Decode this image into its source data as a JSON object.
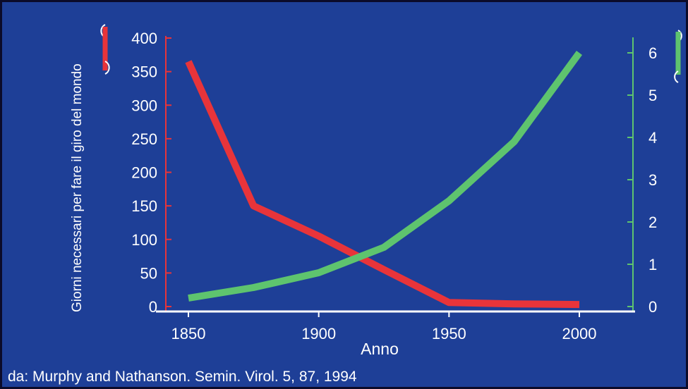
{
  "chart_data": {
    "type": "line",
    "title": "",
    "xlabel": "Anno",
    "ylabel_left": "Giorni necessari per fare il giro del mondo",
    "ylabel_right": "",
    "x_ticks": [
      1850,
      1900,
      1950,
      2000
    ],
    "xlim": [
      1840,
      2020
    ],
    "left_axis": {
      "ylim": [
        0,
        400
      ],
      "ticks": [
        "0",
        "50",
        "100",
        "150",
        "200",
        "250",
        "300",
        "350",
        "400"
      ],
      "color": "#e8343a"
    },
    "right_axis": {
      "ylim": [
        0,
        6.5
      ],
      "ticks": [
        "0",
        "1",
        "2",
        "3",
        "4",
        "5",
        "6"
      ],
      "color": "#5ec46e"
    },
    "series": [
      {
        "axis": "left",
        "color": "#e8343a",
        "x": [
          1850,
          1875,
          1900,
          1925,
          1950,
          1975,
          2000
        ],
        "values": [
          365,
          150,
          105,
          55,
          6,
          4,
          3
        ]
      },
      {
        "axis": "right",
        "color": "#5ec46e",
        "x": [
          1850,
          1875,
          1900,
          1925,
          1950,
          1975,
          2000
        ],
        "values": [
          0.2,
          0.45,
          0.8,
          1.4,
          2.5,
          3.9,
          6.0
        ]
      }
    ],
    "grid": false,
    "legend": "none"
  },
  "source_note": "da: Murphy and Nathanson. Semin. Virol. 5, 87, 1994"
}
